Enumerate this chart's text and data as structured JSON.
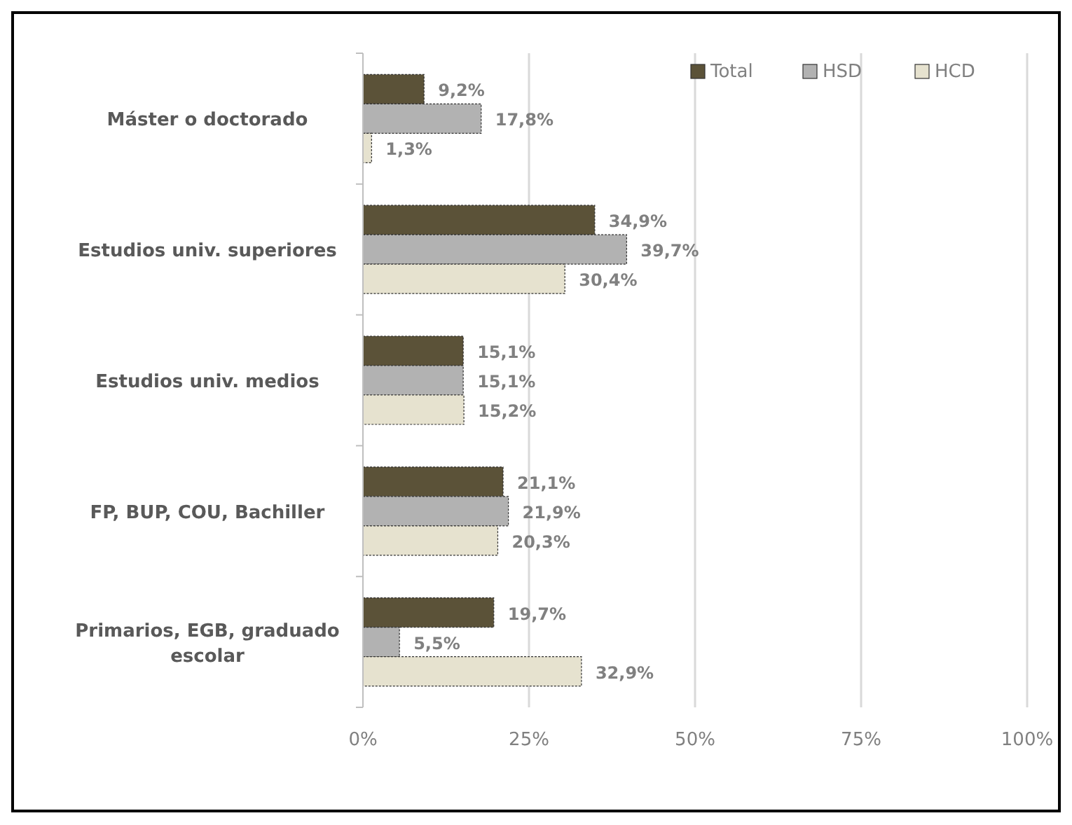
{
  "chart_data": {
    "type": "bar",
    "orientation": "horizontal",
    "categories": [
      "Máster o doctorado",
      "Estudios univ. superiores",
      "Estudios univ. medios",
      "FP, BUP,  COU, Bachiller",
      "Primarios, EGB, graduado escolar"
    ],
    "series": [
      {
        "name": "Total",
        "color": "#5b5238",
        "values": [
          9.2,
          34.9,
          15.1,
          21.1,
          19.7
        ],
        "value_labels": [
          "9,2%",
          "34,9%",
          "15,1%",
          "21,1%",
          "19,7%"
        ]
      },
      {
        "name": "HSD",
        "color": "#b2b2b2",
        "values": [
          17.8,
          39.7,
          15.1,
          21.9,
          5.5
        ],
        "value_labels": [
          "17,8%",
          "39,7%",
          "15,1%",
          "21,9%",
          "5,5%"
        ]
      },
      {
        "name": "HCD",
        "color": "#e6e2cf",
        "values": [
          1.3,
          30.4,
          15.2,
          20.3,
          32.9
        ],
        "value_labels": [
          "1,3%",
          "30,4%",
          "15,2%",
          "20,3%",
          "32,9%"
        ]
      }
    ],
    "xlim": [
      0,
      100
    ],
    "xticks": [
      {
        "value": 0,
        "label": "0%"
      },
      {
        "value": 25,
        "label": "25%"
      },
      {
        "value": 50,
        "label": "50%"
      },
      {
        "value": 75,
        "label": "75%"
      },
      {
        "value": 100,
        "label": "100%"
      }
    ],
    "grid": "x",
    "legend": "top right"
  }
}
